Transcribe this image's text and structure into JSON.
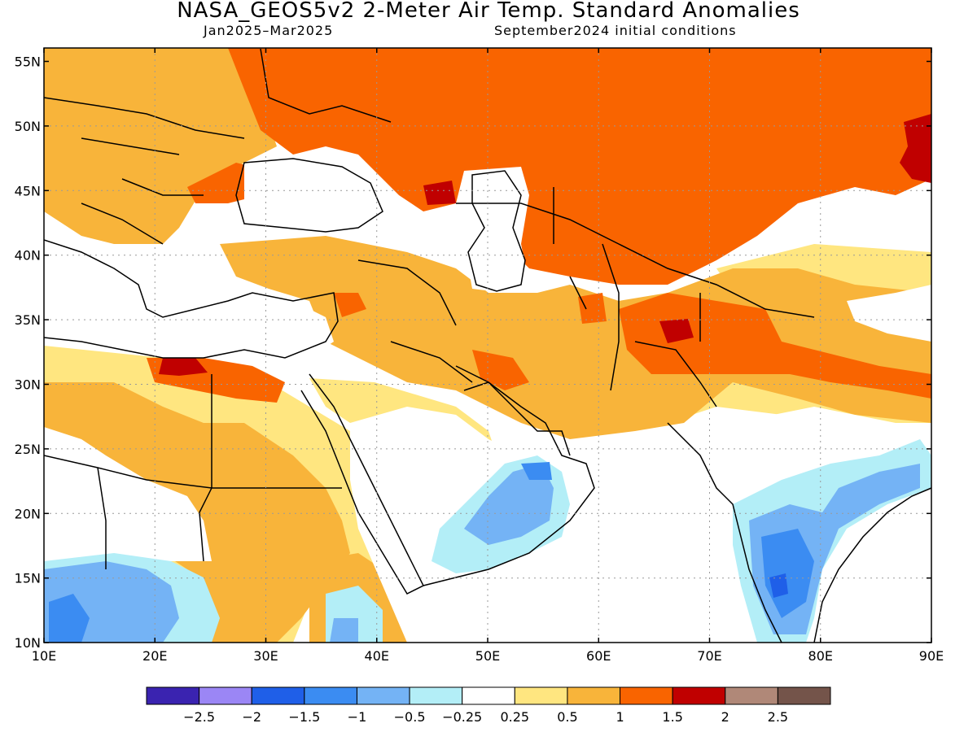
{
  "title": "NASA_GEOS5v2 2-Meter Air Temp. Standard Anomalies",
  "period": "Jan2025–Mar2025",
  "init": "September2024 initial conditions",
  "lat_labels": [
    "55N",
    "50N",
    "45N",
    "40N",
    "35N",
    "30N",
    "25N",
    "20N",
    "15N",
    "10N"
  ],
  "lon_labels": [
    "10E",
    "20E",
    "30E",
    "40E",
    "50E",
    "60E",
    "70E",
    "80E",
    "90E"
  ],
  "colorbar": {
    "colors": [
      "#3a23b0",
      "#9b86f5",
      "#1f5fe8",
      "#3b8cf2",
      "#74b3f5",
      "#b3eef7",
      "#ffffff",
      "#ffe680",
      "#f8b43a",
      "#f96400",
      "#c00000",
      "#b08878",
      "#74544a"
    ],
    "labels": [
      "−2.5",
      "−2",
      "−1.5",
      "−1",
      "−0.5",
      "−0.25",
      "0.25",
      "0.5",
      "1",
      "1.5",
      "2",
      "2.5"
    ]
  },
  "colors": {
    "c025": "#ffe680",
    "c05": "#f8b43a",
    "c1": "#f96400",
    "c15": "#c00000",
    "cm025": "#b3eef7",
    "cm05": "#74b3f5",
    "cm1": "#3b8cf2",
    "cm15": "#1f5fe8"
  }
}
